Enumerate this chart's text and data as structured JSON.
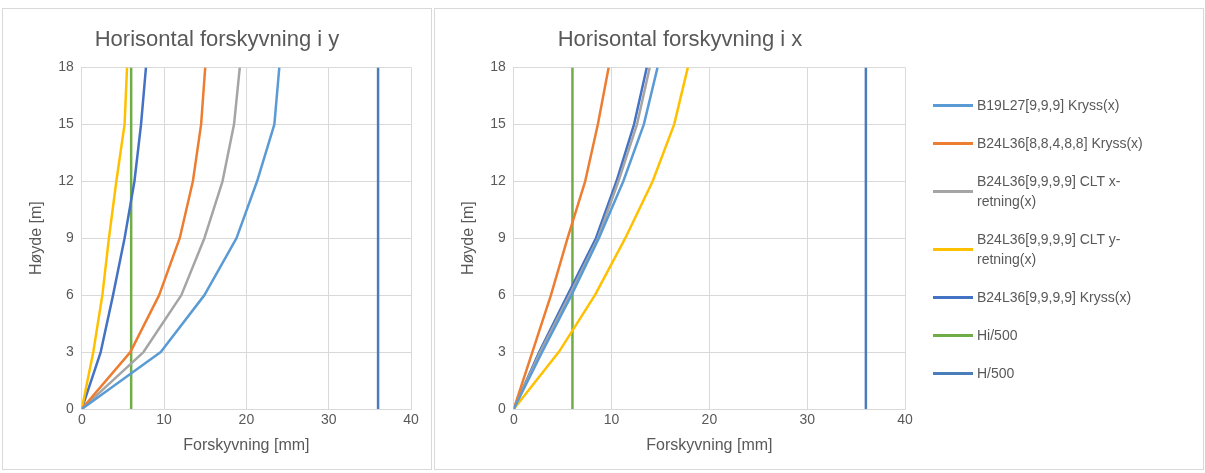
{
  "chart_data": [
    {
      "type": "line",
      "title": "Horisontal forskyvning i y",
      "xlabel": "Forskyvning [mm]",
      "ylabel": "Høyde [m]",
      "xlim": [
        0,
        40
      ],
      "xticks": [
        0,
        10,
        20,
        30,
        40
      ],
      "ylim": [
        0,
        18
      ],
      "yticks": [
        0,
        3,
        6,
        9,
        12,
        15,
        18
      ],
      "grid": true,
      "legend": false,
      "series": [
        {
          "color": "#5b9bd5",
          "x": [
            0,
            9.6,
            14.9,
            18.8,
            21.3,
            23.4,
            24.0
          ],
          "values": [
            0,
            3,
            6,
            9,
            12,
            15,
            18
          ]
        },
        {
          "color": "#ed7d31",
          "x": [
            0,
            5.9,
            9.4,
            11.9,
            13.5,
            14.5,
            15.0
          ],
          "values": [
            0,
            3,
            6,
            9,
            12,
            15,
            18
          ]
        },
        {
          "color": "#a5a5a5",
          "x": [
            0,
            7.5,
            12.1,
            14.9,
            17.1,
            18.5,
            19.2
          ],
          "values": [
            0,
            3,
            6,
            9,
            12,
            15,
            18
          ]
        },
        {
          "color": "#ffc000",
          "x": [
            0,
            1.4,
            2.5,
            3.3,
            4.2,
            5.2,
            5.5
          ],
          "values": [
            0,
            3,
            6,
            9,
            12,
            15,
            18
          ]
        },
        {
          "color": "#4472c4",
          "x": [
            0,
            2.3,
            3.8,
            5.2,
            6.4,
            7.2,
            7.8
          ],
          "values": [
            0,
            3,
            6,
            9,
            12,
            15,
            18
          ]
        },
        {
          "color": "#70ad47",
          "x": [
            6,
            6
          ],
          "values": [
            0,
            18
          ]
        },
        {
          "color": "#4a7ebb",
          "x": [
            36,
            36
          ],
          "values": [
            0,
            18
          ]
        }
      ]
    },
    {
      "type": "line",
      "title": "Horisontal forskyvning i x",
      "xlabel": "Forskyvning [mm]",
      "ylabel": "Høyde [m]",
      "xlim": [
        0,
        40
      ],
      "xticks": [
        0,
        10,
        20,
        30,
        40
      ],
      "ylim": [
        0,
        18
      ],
      "yticks": [
        0,
        3,
        6,
        9,
        12,
        15,
        18
      ],
      "grid": true,
      "legend": "right",
      "series": [
        {
          "name": "B19L27[9,9,9] Kryss(x)",
          "color": "#5b9bd5",
          "x": [
            0,
            2.9,
            5.9,
            8.7,
            11.2,
            13.3,
            14.7
          ],
          "values": [
            0,
            3,
            6,
            9,
            12,
            15,
            18
          ]
        },
        {
          "name": "B24L36[8,8,4,8,8] Kryss(x)",
          "color": "#ed7d31",
          "x": [
            0,
            1.9,
            3.8,
            5.5,
            7.3,
            8.6,
            9.7
          ],
          "values": [
            0,
            3,
            6,
            9,
            12,
            15,
            18
          ]
        },
        {
          "name": "B24L36[9,9,9,9] CLT x-retning(x)",
          "color": "#a5a5a5",
          "x": [
            0,
            2.7,
            5.7,
            8.6,
            10.7,
            12.6,
            13.9
          ],
          "values": [
            0,
            3,
            6,
            9,
            12,
            15,
            18
          ]
        },
        {
          "name": "B24L36[9,9,9,9] CLT y-retning(x)",
          "color": "#ffc000",
          "x": [
            0,
            4.6,
            8.3,
            11.4,
            14.2,
            16.4,
            17.8
          ],
          "values": [
            0,
            3,
            6,
            9,
            12,
            15,
            18
          ]
        },
        {
          "name": "B24L36[9,9,9,9] Kryss(x)",
          "color": "#4472c4",
          "x": [
            0,
            2.6,
            5.5,
            8.4,
            10.5,
            12.3,
            13.6
          ],
          "values": [
            0,
            3,
            6,
            9,
            12,
            15,
            18
          ]
        },
        {
          "name": "Hi/500",
          "color": "#70ad47",
          "x": [
            6,
            6
          ],
          "values": [
            0,
            18
          ]
        },
        {
          "name": "H/500",
          "color": "#4a7ebb",
          "x": [
            36,
            36
          ],
          "values": [
            0,
            18
          ]
        }
      ]
    }
  ]
}
